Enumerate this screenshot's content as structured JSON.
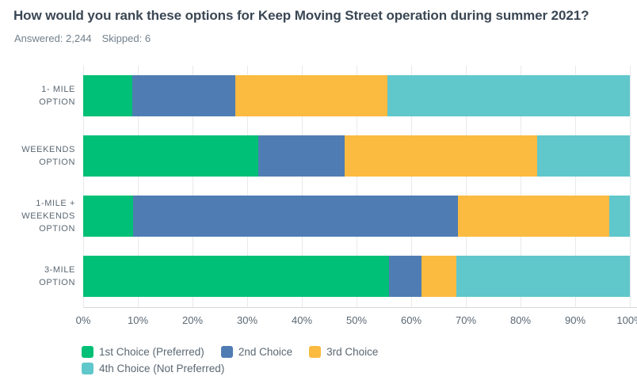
{
  "header": {
    "title": "How would you rank these options for Keep Moving Street operation during summer 2021?",
    "answered_label": "Answered:",
    "answered_value": "2,244",
    "skipped_label": "Skipped:",
    "skipped_value": "6"
  },
  "chart_data": {
    "type": "bar",
    "orientation": "horizontal",
    "stacked": true,
    "title": "How would you rank these options for Keep Moving Street operation during summer 2021?",
    "categories": [
      "1- MILE OPTION",
      "WEEKENDS OPTION",
      "1-MILE + WEEKENDS OPTION",
      "3-MILE OPTION"
    ],
    "category_label_lines": [
      [
        "1- MILE",
        "OPTION"
      ],
      [
        "WEEKENDS",
        "OPTION"
      ],
      [
        "1-MILE +",
        "WEEKENDS",
        "OPTION"
      ],
      [
        "3-MILE",
        "OPTION"
      ]
    ],
    "series": [
      {
        "name": "1st Choice (Preferred)",
        "color": "#00BF76",
        "values": [
          9.0,
          32.0,
          9.2,
          55.9
        ]
      },
      {
        "name": "2nd Choice",
        "color": "#4F7DB3",
        "values": [
          18.8,
          15.8,
          59.4,
          6.0
        ]
      },
      {
        "name": "3rd Choice",
        "color": "#FBBA40",
        "values": [
          27.8,
          35.2,
          27.7,
          6.3
        ]
      },
      {
        "name": "4th Choice (Not Preferred)",
        "color": "#60C7CB",
        "values": [
          44.4,
          17.0,
          3.7,
          31.8
        ]
      }
    ],
    "x_ticks": [
      "0%",
      "10%",
      "20%",
      "30%",
      "40%",
      "50%",
      "60%",
      "70%",
      "80%",
      "90%",
      "100%"
    ],
    "xlabel": "",
    "ylabel": "",
    "xlim": [
      0,
      100
    ],
    "grid": true,
    "legend_position": "bottom"
  },
  "legend": {
    "items": [
      {
        "label": "1st Choice (Preferred)",
        "color": "#00BF76",
        "row": 0
      },
      {
        "label": "2nd Choice",
        "color": "#4F7DB3",
        "row": 0
      },
      {
        "label": "3rd Choice",
        "color": "#FBBA40",
        "row": 0
      },
      {
        "label": "4th Choice (Not Preferred)",
        "color": "#60C7CB",
        "row": 1
      }
    ]
  }
}
